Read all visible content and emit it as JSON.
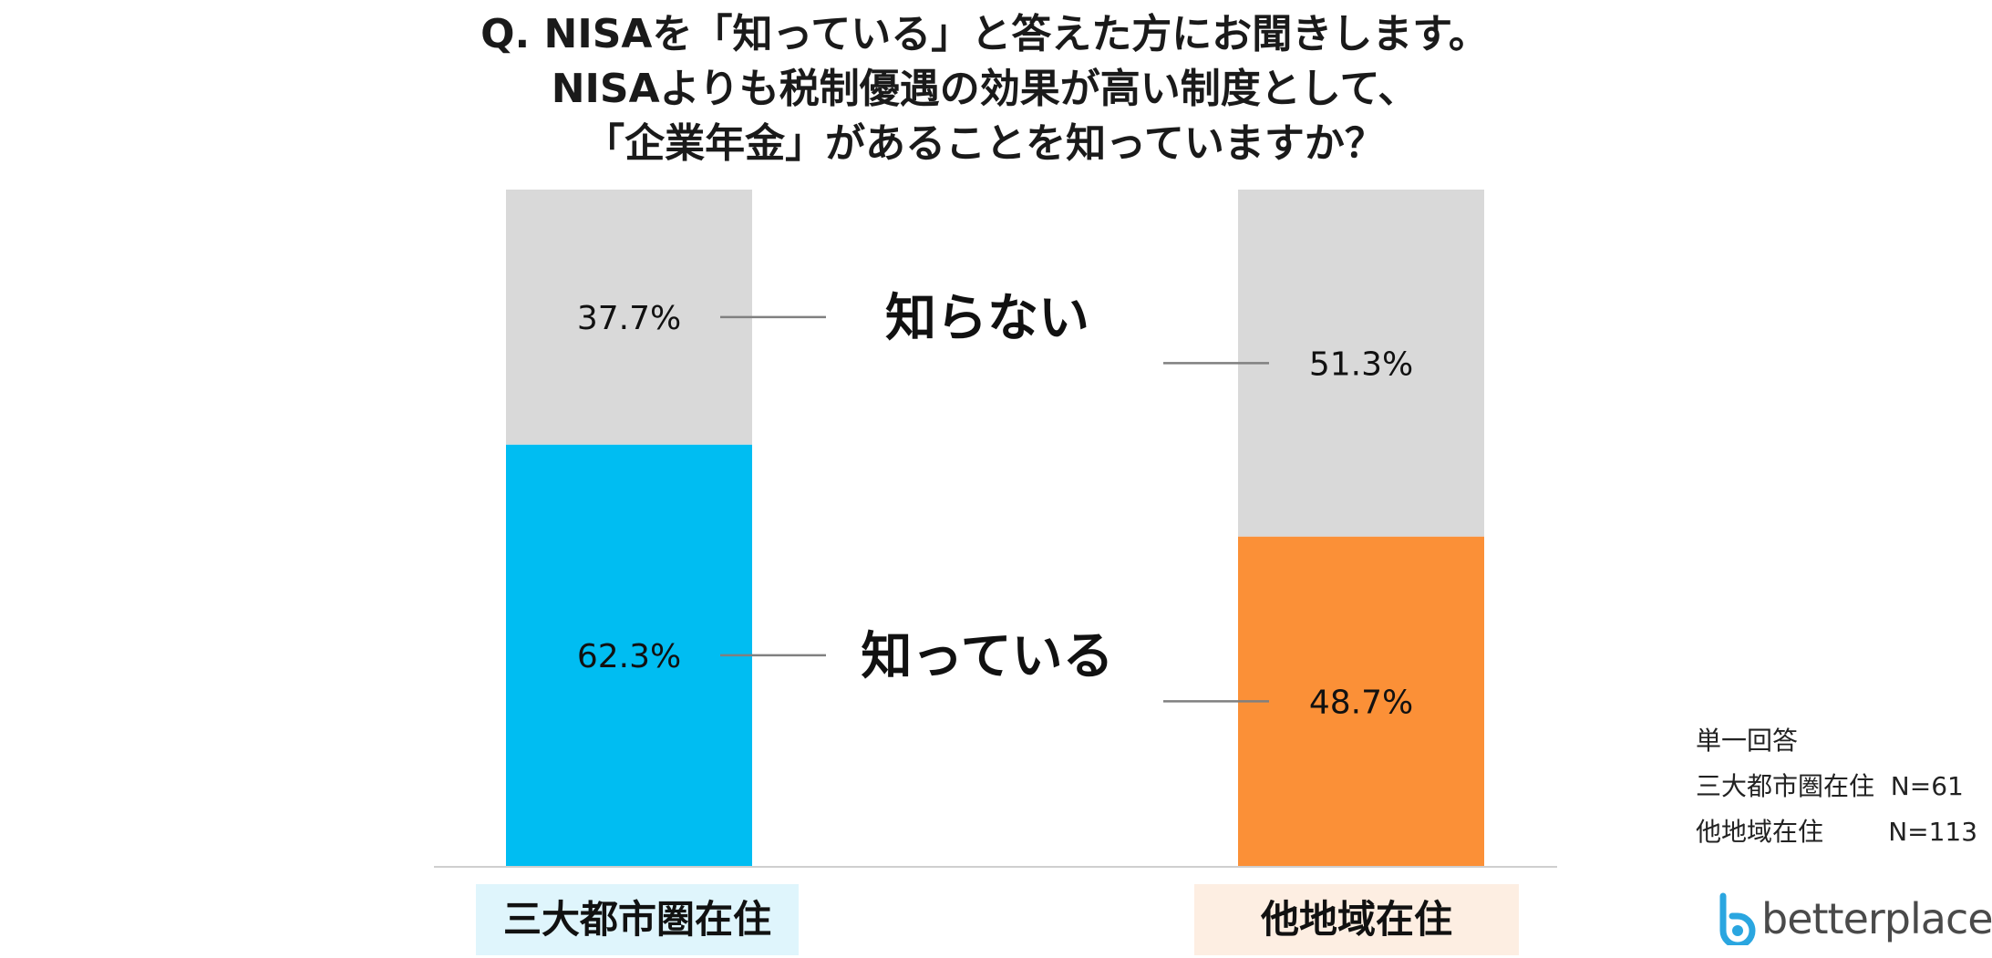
{
  "title_lines": [
    "Q. NISAを「知っている」と答えた方にお聞きします。",
    "NISAよりも税制優遇の効果が高い制度として、",
    "「企業年金」があることを知っていますか？"
  ],
  "notes": {
    "line1": "単一回答",
    "line2": "三大都市圏在住  N=61",
    "line3": "他地域在住        N=113"
  },
  "brand": {
    "name": "betterplace",
    "icon": "betterplace-logo-icon",
    "color": "#2aa6e0"
  },
  "colors": {
    "gray_segment": "#d9d9d9",
    "blue_segment": "#00bdf2",
    "orange_segment": "#fb9037",
    "cat1_label_bg": "#dff5fc",
    "cat2_label_bg": "#fdeee2",
    "leader_line": "#808080",
    "baseline": "#bfbfbf"
  },
  "chart_data": {
    "type": "bar",
    "stacked": true,
    "categories": [
      "三大都市圏在住",
      "他地域在住"
    ],
    "series": [
      {
        "name": "知っている",
        "values": [
          62.3,
          48.7
        ],
        "labels": [
          "62.3%",
          "48.7%"
        ]
      },
      {
        "name": "知らない",
        "values": [
          37.7,
          51.3
        ],
        "labels": [
          "37.7%",
          "51.3%"
        ]
      }
    ],
    "ylim": [
      0,
      100
    ],
    "grid": false,
    "legend": "center-between-bars"
  }
}
